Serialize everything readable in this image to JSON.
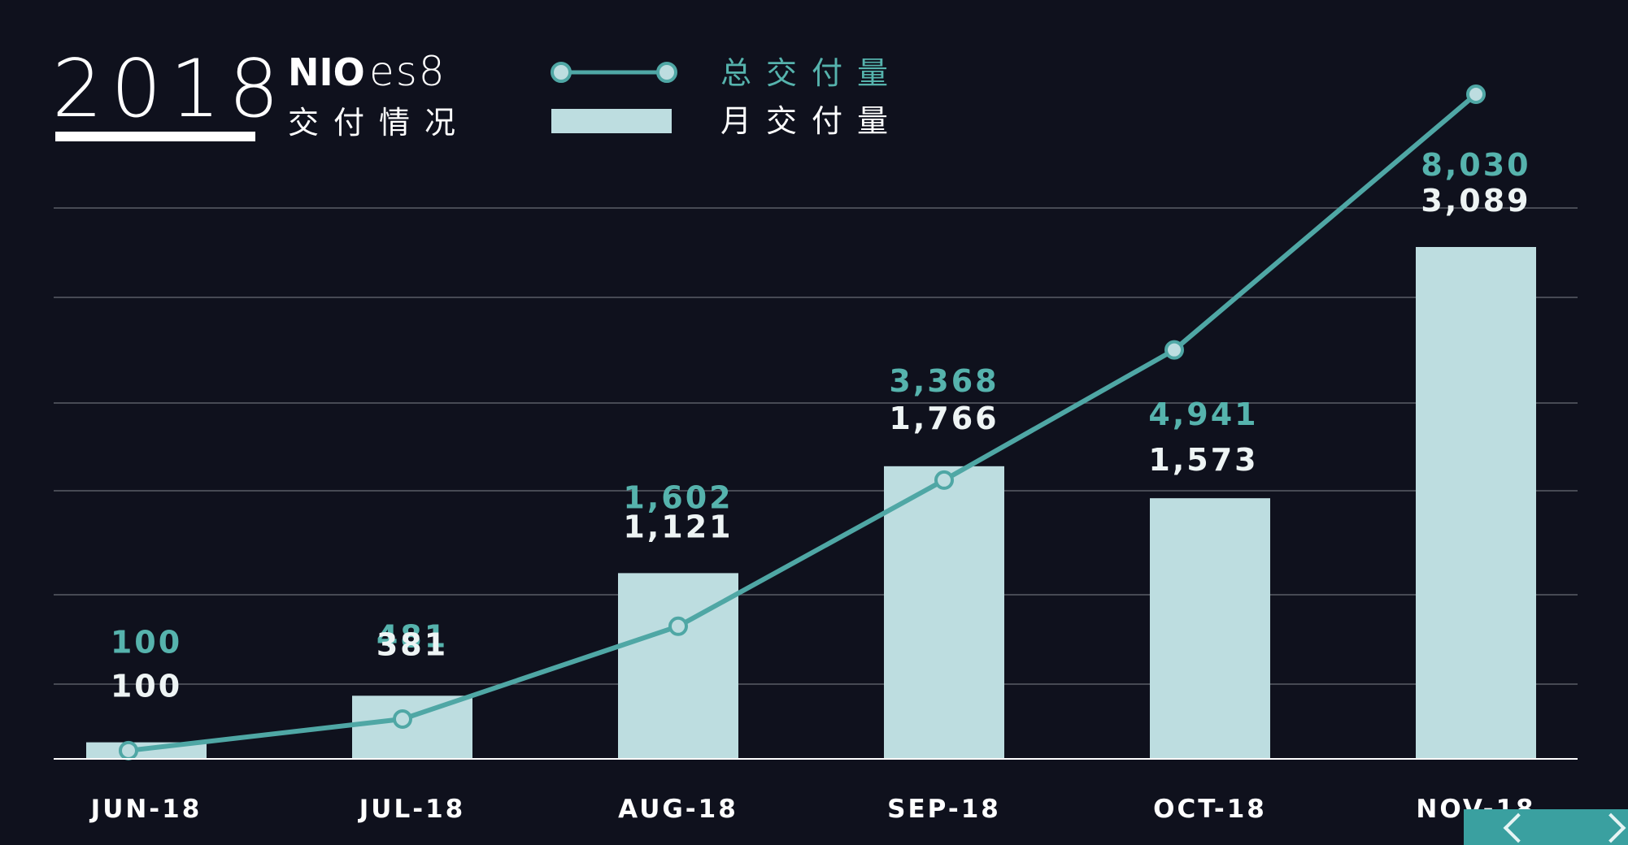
{
  "header": {
    "year": "2018",
    "brand": "NIO",
    "model": "es8",
    "subtitle": "交付情况"
  },
  "legend": {
    "cumulative_label": "总交付量",
    "monthly_label": "月交付量"
  },
  "colors": {
    "background": "#0f111d",
    "line": "#4fa7a5",
    "bar": "#bddde0",
    "cumulative_text": "#56b3ad",
    "monthly_text": "#eef4f4",
    "grid": "#5a5d66"
  },
  "chart_data": {
    "type": "bar",
    "categories": [
      "JUN-18",
      "JUL-18",
      "AUG-18",
      "SEP-18",
      "OCT-18",
      "NOV-18"
    ],
    "series": [
      {
        "name": "月交付量",
        "type": "bar",
        "values": [
          100,
          381,
          1121,
          1766,
          1573,
          3089
        ],
        "labels": [
          "100",
          "381",
          "1,121",
          "1,766",
          "1,573",
          "3,089"
        ]
      },
      {
        "name": "总交付量",
        "type": "line",
        "values": [
          100,
          481,
          1602,
          3368,
          4941,
          8030
        ],
        "labels": [
          "100",
          "481",
          "1,602",
          "3,368",
          "4,941",
          "8,030"
        ]
      }
    ],
    "title": "",
    "xlabel": "",
    "ylabel": "",
    "grid": true,
    "legend_position": "top"
  },
  "icons": {
    "nav_prev": "chevron-left-icon",
    "nav_next": "chevron-right-icon"
  }
}
